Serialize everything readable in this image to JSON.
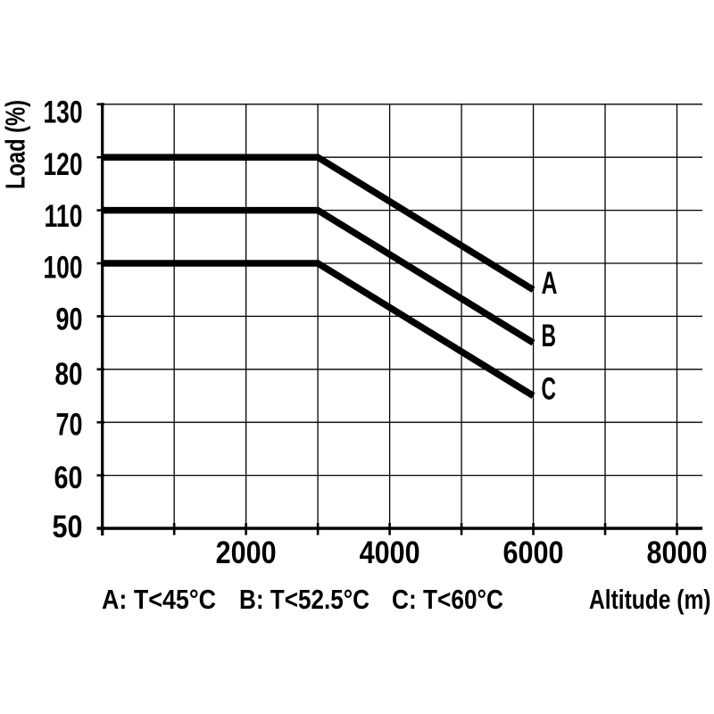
{
  "chart_data": {
    "type": "line",
    "title": "",
    "xlabel": "Altitude (m)",
    "ylabel": "Load (%)",
    "xlim": [
      0,
      8350
    ],
    "ylim": [
      50,
      130
    ],
    "x_ticks": [
      2000,
      4000,
      6000,
      8000
    ],
    "x_grid": [
      1000,
      2000,
      3000,
      4000,
      5000,
      6000,
      7000,
      8000
    ],
    "y_ticks": [
      130,
      120,
      110,
      100,
      90,
      80,
      70,
      60,
      50
    ],
    "y_grid": [
      130,
      120,
      110,
      100,
      90,
      80,
      70,
      60
    ],
    "grid": true,
    "legend_position": "bottom",
    "series": [
      {
        "name": "A",
        "points": [
          [
            0,
            120
          ],
          [
            3000,
            120
          ],
          [
            6000,
            95
          ]
        ]
      },
      {
        "name": "B",
        "points": [
          [
            0,
            110
          ],
          [
            3000,
            110
          ],
          [
            6000,
            85
          ]
        ]
      },
      {
        "name": "C",
        "points": [
          [
            0,
            100
          ],
          [
            3000,
            100
          ],
          [
            6000,
            75
          ]
        ]
      }
    ],
    "legend": [
      "A: T<45°C",
      "B: T<52.5°C",
      "C: T<60°C"
    ]
  },
  "colors": {
    "background": "#ffffff",
    "line": "#000000",
    "grid": "#000000",
    "axis": "#000000",
    "text": "#000000"
  }
}
